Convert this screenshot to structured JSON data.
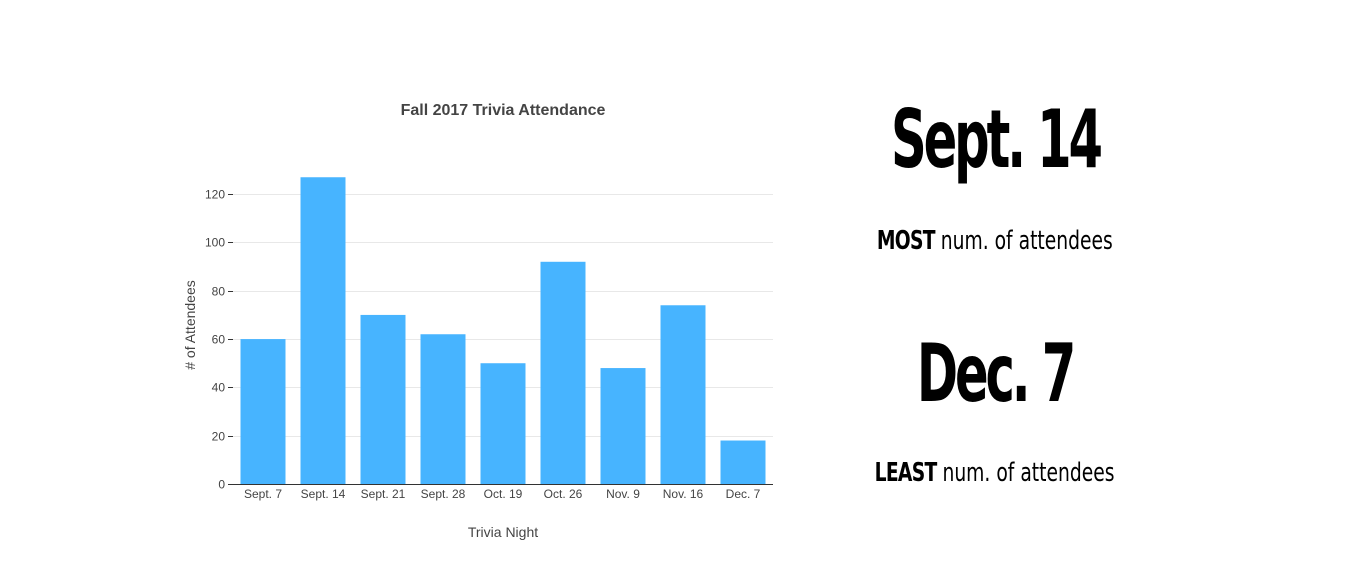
{
  "chart_data": {
    "type": "bar",
    "title": "Fall 2017 Trivia Attendance",
    "xlabel": "Trivia Night",
    "ylabel": "# of Attendees",
    "categories": [
      "Sept. 7",
      "Sept. 14",
      "Sept. 21",
      "Sept. 28",
      "Oct. 19",
      "Oct. 26",
      "Nov. 9",
      "Nov. 16",
      "Dec. 7"
    ],
    "values": [
      60,
      127,
      70,
      62,
      50,
      92,
      48,
      74,
      18
    ],
    "ylim": [
      0,
      130
    ],
    "yticks": [
      0,
      20,
      40,
      60,
      80,
      100,
      120
    ],
    "grid": true,
    "bar_color": "#47b4ff"
  },
  "highlights": {
    "most": {
      "date": "Sept. 14",
      "strong": "MOST",
      "rest": " num. of attendees"
    },
    "least": {
      "date": "Dec. 7",
      "strong": "LEAST",
      "rest": " num. of attendees"
    }
  }
}
